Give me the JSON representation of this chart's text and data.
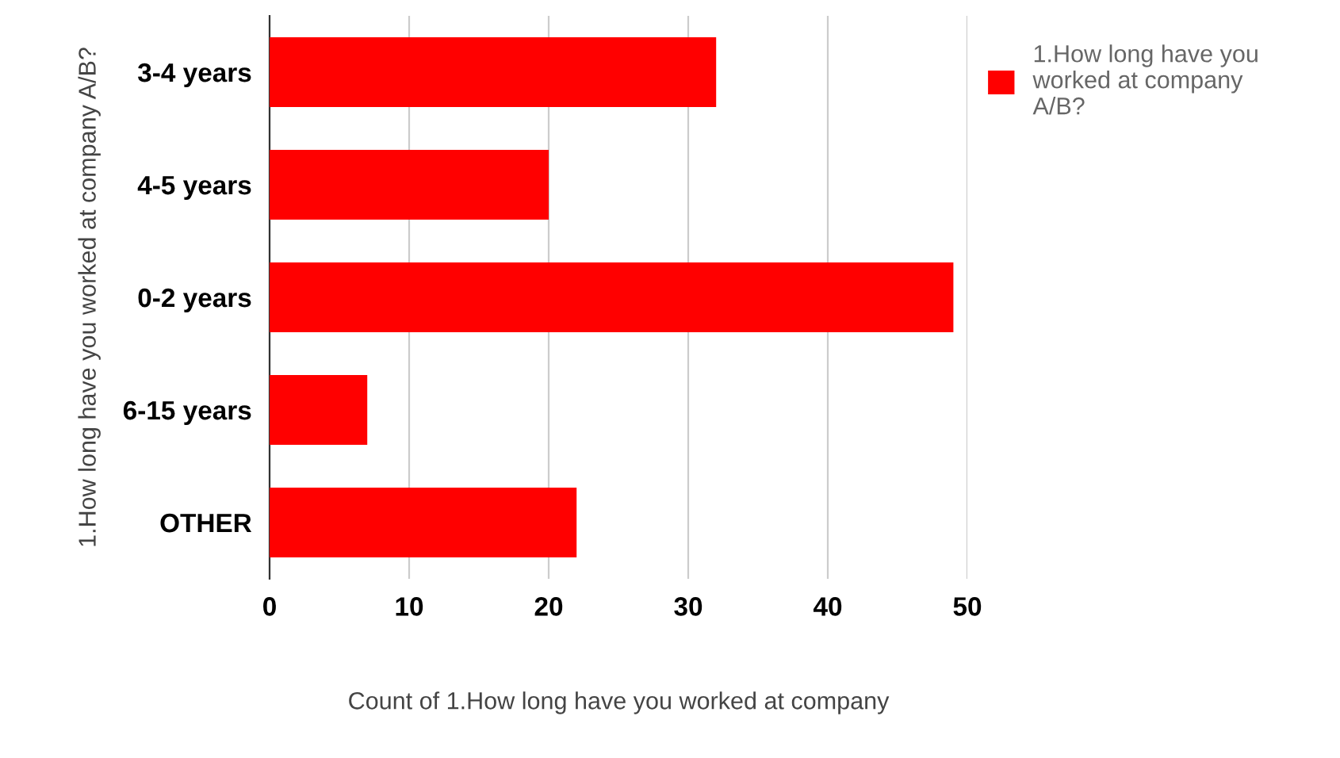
{
  "chart_data": {
    "type": "bar",
    "orientation": "horizontal",
    "categories": [
      "3-4 years",
      "4-5 years",
      "0-2 years",
      "6-15 years",
      "OTHER"
    ],
    "series": [
      {
        "name": "1.How long have you worked at company A/B?",
        "color": "#ff0000",
        "values": [
          32,
          20,
          49,
          7,
          22
        ]
      }
    ],
    "xlabel": "Count of 1.How long have you worked at company",
    "ylabel": "1.How long have you worked at company A/B?",
    "xlim": [
      0,
      50
    ],
    "xticks": [
      0,
      10,
      20,
      30,
      40,
      50
    ],
    "grid": "x",
    "legend": "top right"
  }
}
